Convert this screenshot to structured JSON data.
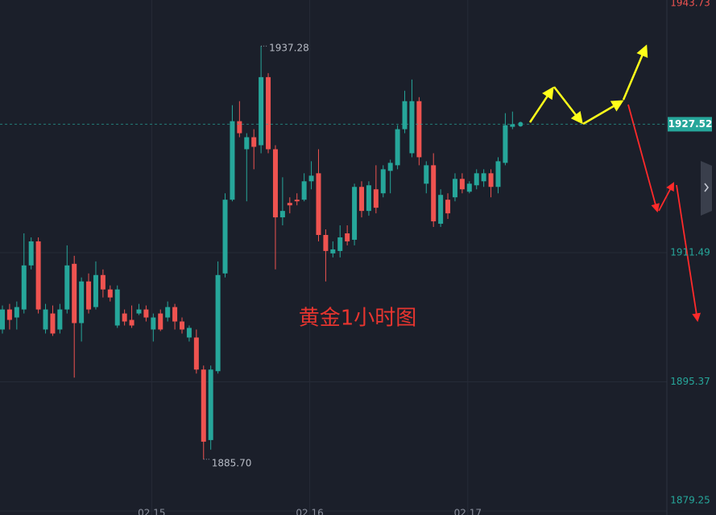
{
  "chart_data": {
    "type": "candlestick",
    "title": "黄金1小时图",
    "categories": [
      null,
      null,
      null,
      null,
      null,
      null,
      null,
      null,
      null,
      null,
      null,
      null,
      null,
      null,
      null,
      null,
      null,
      null,
      null,
      null,
      null,
      "02.15",
      null,
      null,
      null,
      null,
      null,
      null,
      null,
      null,
      null,
      null,
      null,
      null,
      null,
      null,
      null,
      null,
      null,
      null,
      null,
      null,
      null,
      "02.16",
      null,
      null,
      null,
      null,
      null,
      null,
      null,
      null,
      null,
      null,
      null,
      null,
      null,
      null,
      null,
      null,
      null,
      null,
      null,
      null,
      null,
      "02.17",
      null,
      null,
      null,
      null,
      null,
      null
    ],
    "open": [
      1901.9,
      1904.4,
      1903.4,
      1904.4,
      1909.9,
      1912.9,
      1901.9,
      1903.9,
      1901.9,
      1904.4,
      1910.1,
      1902.7,
      1907.9,
      1904.7,
      1908.7,
      1906.9,
      1902.4,
      1903.9,
      1903.1,
      1903.9,
      1904.4,
      1901.9,
      1903.9,
      1903.4,
      1904.7,
      1902.9,
      1900.9,
      1900.9,
      1896.9,
      1888.1,
      1896.7,
      1908.9,
      1918.1,
      1927.9,
      1924.4,
      1925.9,
      1924.9,
      1933.4,
      1924.4,
      1915.9,
      1917.7,
      1918.1,
      1918.1,
      1920.4,
      1921.4,
      1913.7,
      1911.4,
      1911.7,
      1913.9,
      1913.1,
      1919.7,
      1916.7,
      1919.4,
      1918.9,
      1921.7,
      1922.4,
      1926.9,
      1923.9,
      1930.4,
      1920.1,
      1922.4,
      1915.1,
      1918.1,
      1918.4,
      1920.7,
      1919.1,
      1919.9,
      1920.4,
      1921.4,
      1919.7,
      1922.7,
      1927.2
    ],
    "high": [
      1904.9,
      1905.1,
      1905.4,
      1913.9,
      1913.4,
      1913.4,
      1905.1,
      1904.9,
      1905.1,
      1912.4,
      1911.1,
      1908.4,
      1908.9,
      1910.4,
      1909.4,
      1907.4,
      1907.4,
      1904.4,
      1904.9,
      1905.1,
      1904.9,
      1903.9,
      1904.4,
      1905.4,
      1905.1,
      1903.4,
      1902.4,
      1901.9,
      1897.4,
      1897.4,
      1910.4,
      1918.9,
      1929.9,
      1930.4,
      1926.4,
      1926.9,
      1937.28,
      1933.9,
      1924.9,
      1920.9,
      1918.4,
      1918.9,
      1921.4,
      1922.9,
      1924.4,
      1914.4,
      1912.9,
      1914.9,
      1914.9,
      1920.1,
      1920.4,
      1920.4,
      1922.4,
      1922.4,
      1923.1,
      1927.4,
      1931.7,
      1933.1,
      1930.9,
      1922.9,
      1923.9,
      1919.4,
      1918.9,
      1921.4,
      1921.4,
      1920.4,
      1921.9,
      1921.9,
      1921.9,
      1923.4,
      1928.9,
      1929.1
    ],
    "low": [
      1901.4,
      1901.9,
      1901.9,
      1903.9,
      1909.4,
      1903.9,
      1901.4,
      1901.1,
      1901.4,
      1903.9,
      1895.9,
      1900.4,
      1903.9,
      1904.4,
      1905.9,
      1905.4,
      1902.1,
      1902.4,
      1902.1,
      1903.7,
      1902.9,
      1900.4,
      1901.7,
      1902.9,
      1901.9,
      1901.4,
      1900.4,
      1896.4,
      1885.7,
      1886.9,
      1896.4,
      1908.4,
      1917.9,
      1925.9,
      1917.9,
      1921.9,
      1923.9,
      1923.9,
      1909.4,
      1914.9,
      1916.4,
      1917.4,
      1917.9,
      1919.4,
      1912.9,
      1907.9,
      1910.9,
      1910.9,
      1912.4,
      1912.4,
      1915.9,
      1916.1,
      1916.4,
      1918.4,
      1918.9,
      1921.9,
      1926.4,
      1923.4,
      1922.4,
      1918.9,
      1914.7,
      1914.7,
      1915.7,
      1917.9,
      1918.9,
      1918.9,
      1919.4,
      1919.7,
      1918.4,
      1918.9,
      1922.4,
      1926.9
    ],
    "close": [
      1904.4,
      1903.1,
      1904.7,
      1909.9,
      1912.9,
      1904.4,
      1904.4,
      1901.4,
      1904.4,
      1909.9,
      1902.7,
      1907.9,
      1904.4,
      1908.7,
      1906.9,
      1905.9,
      1906.9,
      1902.9,
      1902.4,
      1904.4,
      1903.4,
      1903.4,
      1901.9,
      1904.7,
      1902.9,
      1901.9,
      1902.1,
      1896.9,
      1887.9,
      1896.9,
      1908.7,
      1918.1,
      1927.9,
      1926.4,
      1925.9,
      1924.7,
      1933.4,
      1924.4,
      1915.9,
      1916.7,
      1917.4,
      1917.9,
      1920.4,
      1921.1,
      1913.7,
      1911.7,
      1911.9,
      1913.4,
      1912.9,
      1919.7,
      1916.7,
      1919.9,
      1917.1,
      1921.9,
      1922.7,
      1926.9,
      1930.4,
      1930.4,
      1923.4,
      1922.4,
      1915.4,
      1918.7,
      1916.4,
      1920.7,
      1919.4,
      1920.1,
      1921.4,
      1921.4,
      1919.7,
      1922.9,
      1927.4,
      1927.52
    ],
    "up_color": "#26a69a",
    "down_color": "#ef5350",
    "ylim": [
      1879.25,
      1943.73
    ],
    "yticks": [
      1943.73,
      1911.49,
      1895.37,
      1879.25
    ],
    "last_price": 1927.52,
    "annotations": [
      {
        "text": "1937.28",
        "index": 36
      },
      {
        "text": "1885.70",
        "index": 28
      }
    ],
    "grid": true
  }
}
